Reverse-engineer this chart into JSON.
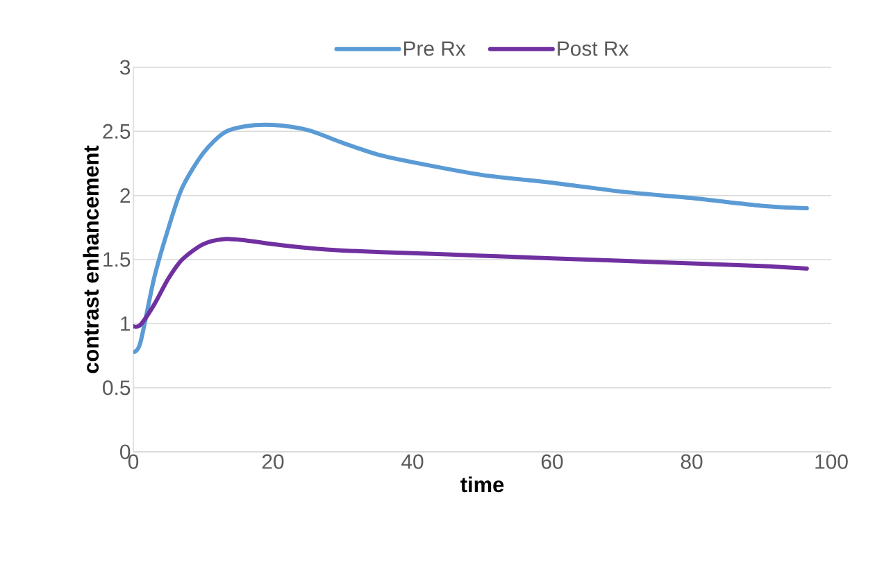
{
  "chart_data": {
    "type": "line",
    "xlabel": "time",
    "ylabel": "contrast enhancement",
    "xlim": [
      0,
      100
    ],
    "ylim": [
      0,
      3
    ],
    "xticks": [
      0,
      20,
      40,
      60,
      80,
      100
    ],
    "yticks": [
      0,
      0.5,
      1,
      1.5,
      2,
      2.5,
      3
    ],
    "grid": "y",
    "legend": "top",
    "marker": "none",
    "line_style": "solid",
    "series": [
      {
        "name": "Pre Rx",
        "color": "#5b9bd5",
        "x": [
          0,
          1,
          3,
          5,
          7,
          10,
          13,
          16,
          20,
          25,
          30,
          35,
          40,
          50,
          60,
          70,
          80,
          90,
          96.5
        ],
        "values": [
          0.78,
          0.85,
          1.36,
          1.74,
          2.06,
          2.33,
          2.49,
          2.54,
          2.55,
          2.51,
          2.41,
          2.32,
          2.26,
          2.16,
          2.1,
          2.03,
          1.98,
          1.92,
          1.9
        ]
      },
      {
        "name": "Post Rx",
        "color": "#7030a0",
        "x": [
          0,
          1,
          3,
          5,
          7,
          10,
          13,
          16,
          20,
          25,
          30,
          40,
          50,
          60,
          70,
          80,
          90,
          96.5
        ],
        "values": [
          0.98,
          0.99,
          1.15,
          1.35,
          1.5,
          1.62,
          1.66,
          1.65,
          1.62,
          1.59,
          1.57,
          1.55,
          1.53,
          1.51,
          1.49,
          1.47,
          1.45,
          1.43
        ]
      }
    ]
  }
}
